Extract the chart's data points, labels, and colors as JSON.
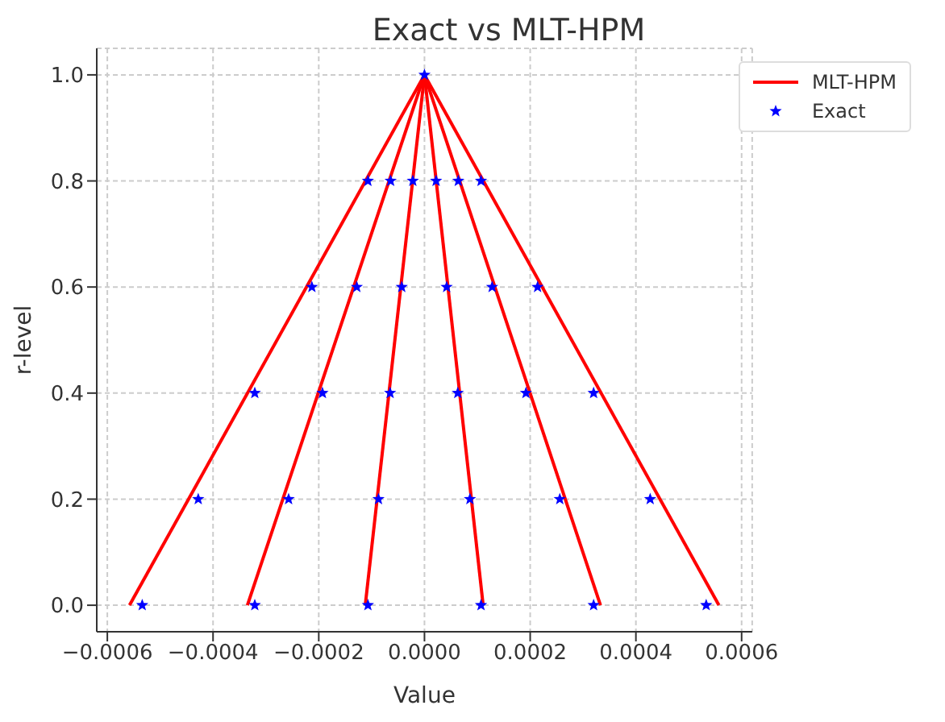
{
  "chart_data": {
    "type": "line",
    "title": "Exact vs MLT-HPM",
    "xlabel": "Value",
    "ylabel": "r-level",
    "xlim": [
      -0.00062,
      0.00062
    ],
    "ylim": [
      -0.05,
      1.05
    ],
    "xticks": [
      {
        "value": -0.0006,
        "label": "−0.0006"
      },
      {
        "value": -0.0004,
        "label": "−0.0004"
      },
      {
        "value": -0.0002,
        "label": "−0.0002"
      },
      {
        "value": 0,
        "label": "0.0000"
      },
      {
        "value": 0.0002,
        "label": "0.0002"
      },
      {
        "value": 0.0004,
        "label": "0.0004"
      },
      {
        "value": 0.0006,
        "label": "0.0006"
      }
    ],
    "yticks": [
      {
        "value": 0,
        "label": "0.0"
      },
      {
        "value": 0.2,
        "label": "0.2"
      },
      {
        "value": 0.4,
        "label": "0.4"
      },
      {
        "value": 0.6,
        "label": "0.6"
      },
      {
        "value": 0.8,
        "label": "0.8"
      },
      {
        "value": 1,
        "label": "1.0"
      }
    ],
    "grid": true,
    "legend": "top right",
    "line_style": "dashed",
    "series": [
      {
        "name": "MLT-HPM",
        "color": "#ff0000",
        "marker": "none",
        "line_style": "solid",
        "x": [
          -0.000558,
          0
        ],
        "values": [
          0,
          1
        ]
      },
      {
        "color": "#ff0000",
        "marker": "none",
        "line_style": "solid",
        "x": [
          -0.000335,
          0
        ],
        "values": [
          0,
          1
        ]
      },
      {
        "color": "#ff0000",
        "marker": "none",
        "line_style": "solid",
        "x": [
          -0.000112,
          0
        ],
        "values": [
          0,
          1
        ]
      },
      {
        "color": "#ff0000",
        "marker": "none",
        "line_style": "solid",
        "x": [
          0.000111,
          0
        ],
        "values": [
          0,
          1
        ]
      },
      {
        "color": "#ff0000",
        "marker": "none",
        "line_style": "solid",
        "x": [
          0.000333,
          0
        ],
        "values": [
          0,
          1
        ]
      },
      {
        "color": "#ff0000",
        "marker": "none",
        "line_style": "solid",
        "x": [
          0.000557,
          0
        ],
        "values": [
          0,
          1
        ]
      },
      {
        "name": "Exact",
        "type": "scatter",
        "color": "#0000ff",
        "marker": "star",
        "x": [
          -0.000534,
          -0.000321,
          -0.000107,
          0.000107,
          0.00032,
          0.000533,
          -0.000428,
          -0.000257,
          -8.7e-05,
          8.6e-05,
          0.000256,
          0.000427,
          -0.000321,
          -0.000193,
          -6.5e-05,
          6.3e-05,
          0.000192,
          0.00032,
          -0.000213,
          -0.000128,
          -4.3e-05,
          4.2e-05,
          0.000128,
          0.000214,
          -0.000107,
          -6.4e-05,
          -2.2e-05,
          2.2e-05,
          6.4e-05,
          0.000107,
          0
        ],
        "values": [
          0,
          0,
          0,
          0,
          0,
          0,
          0.2,
          0.2,
          0.2,
          0.2,
          0.2,
          0.2,
          0.4,
          0.4,
          0.4,
          0.4,
          0.4,
          0.4,
          0.6,
          0.6,
          0.6,
          0.6,
          0.6,
          0.6,
          0.8,
          0.8,
          0.8,
          0.8,
          0.8,
          0.8,
          1
        ]
      }
    ]
  }
}
